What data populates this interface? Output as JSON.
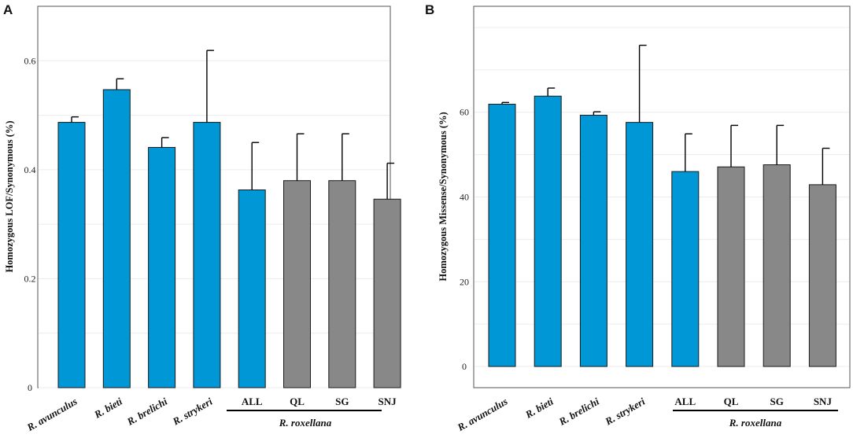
{
  "chart_data": [
    {
      "panel": "A",
      "type": "bar",
      "ylabel": "Homozygous LOF/Synonymous (%)",
      "ylim": [
        0,
        0.7
      ],
      "yticks": [
        0,
        0.2,
        0.4,
        0.6
      ],
      "ytick_labels": [
        "0",
        "0.2",
        "0.4",
        "0.6"
      ],
      "grid": true,
      "categories": [
        "R. avunculus",
        "R. bieti",
        "R. brelichi",
        "R. strykeri",
        "ALL",
        "QL",
        "SG",
        "SNJ"
      ],
      "italic_categories": [
        true,
        true,
        true,
        true,
        false,
        false,
        false,
        false
      ],
      "values": [
        0.487,
        0.547,
        0.441,
        0.487,
        0.363,
        0.38,
        0.38,
        0.346
      ],
      "error": [
        0.01,
        0.02,
        0.018,
        0.132,
        0.087,
        0.086,
        0.086,
        0.066
      ],
      "bar_colors": [
        "#0097d6",
        "#0097d6",
        "#0097d6",
        "#0097d6",
        "#0097d6",
        "#888888",
        "#888888",
        "#888888"
      ],
      "group_label": "R. roxellana"
    },
    {
      "panel": "B",
      "type": "bar",
      "ylabel": "Homozygous Missense/Synonymous (%)",
      "ylim": [
        -5,
        85
      ],
      "yticks": [
        0,
        20,
        40,
        60
      ],
      "ytick_labels": [
        "0",
        "20",
        "40",
        "60"
      ],
      "grid": true,
      "categories": [
        "R. avunculus",
        "R. bieti",
        "R. brelichi",
        "R. strykeri",
        "ALL",
        "QL",
        "SG",
        "SNJ"
      ],
      "italic_categories": [
        true,
        true,
        true,
        true,
        false,
        false,
        false,
        false
      ],
      "values": [
        61.9,
        63.8,
        59.3,
        57.6,
        46.0,
        47.1,
        47.6,
        42.9
      ],
      "error": [
        0.4,
        1.9,
        0.8,
        18.2,
        8.9,
        9.8,
        9.3,
        8.6
      ],
      "bar_colors": [
        "#0097d6",
        "#0097d6",
        "#0097d6",
        "#0097d6",
        "#0097d6",
        "#888888",
        "#888888",
        "#888888"
      ],
      "group_label": "R. roxellana"
    }
  ]
}
